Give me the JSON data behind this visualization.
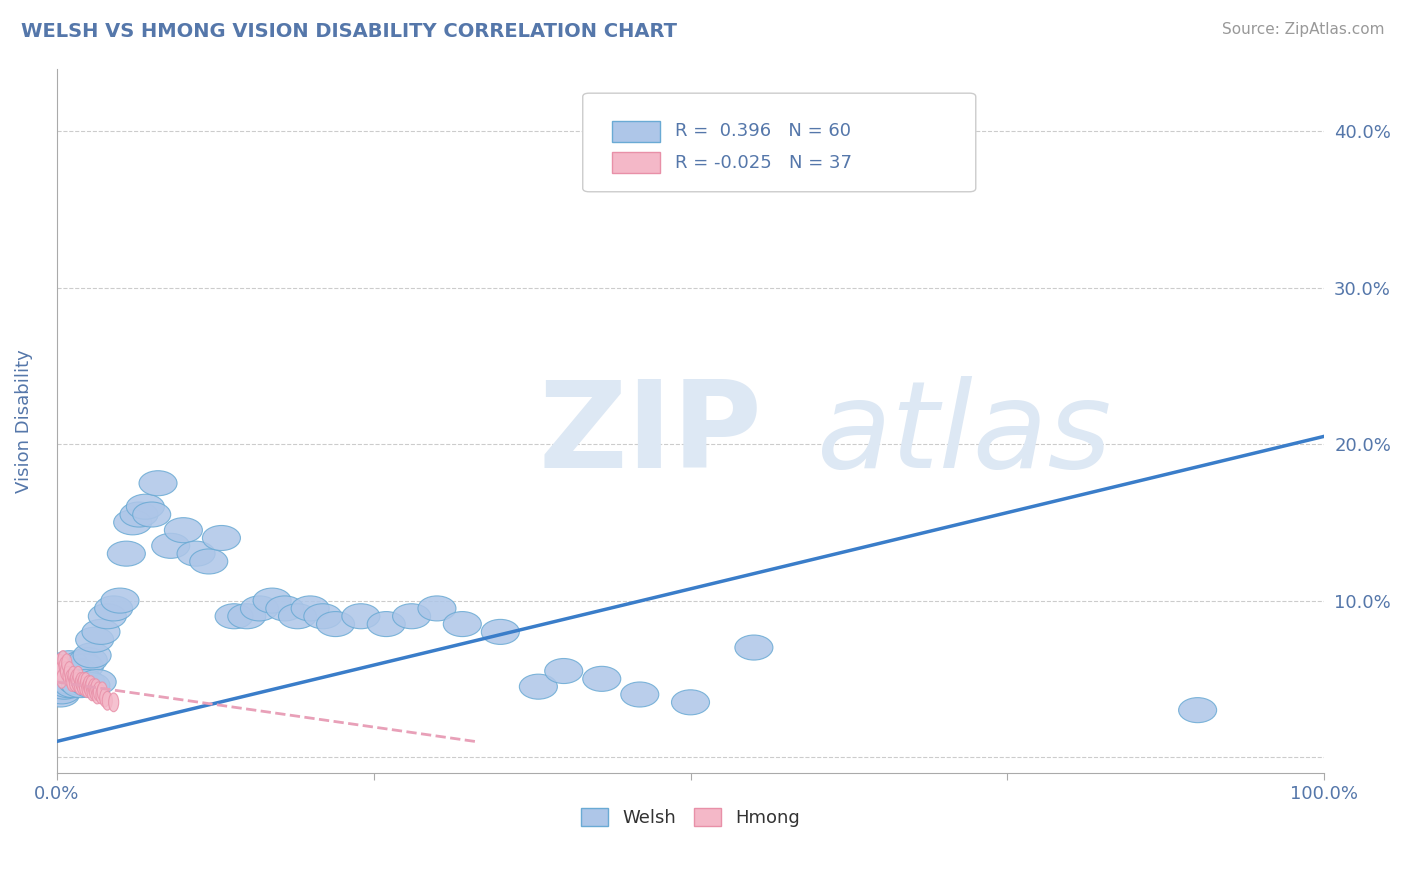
{
  "title": "WELSH VS HMONG VISION DISABILITY CORRELATION CHART",
  "source": "Source: ZipAtlas.com",
  "ylabel": "Vision Disability",
  "xlim": [
    0,
    1.0
  ],
  "ylim": [
    -0.01,
    0.44
  ],
  "welsh_R": 0.396,
  "welsh_N": 60,
  "hmong_R": -0.025,
  "hmong_N": 37,
  "welsh_color": "#aec6e8",
  "welsh_edge_color": "#6aaad4",
  "hmong_color": "#f4b8c8",
  "hmong_edge_color": "#e890a8",
  "welsh_line_color": "#3a7dc9",
  "hmong_line_color": "#e8a0b8",
  "welsh_line_x": [
    0.0,
    1.0
  ],
  "welsh_line_y": [
    0.01,
    0.205
  ],
  "hmong_line_x": [
    0.0,
    0.33
  ],
  "hmong_line_y": [
    0.048,
    0.01
  ],
  "background_color": "#ffffff",
  "grid_color": "#cccccc",
  "title_color": "#5577aa",
  "axis_label_color": "#5577aa",
  "tick_color": "#5577aa",
  "watermark_zip": "ZIP",
  "watermark_atlas": "atlas",
  "watermark_color": "#dde8f4",
  "welsh_scatter_x": [
    0.005,
    0.008,
    0.01,
    0.012,
    0.015,
    0.018,
    0.02,
    0.022,
    0.025,
    0.028,
    0.03,
    0.035,
    0.04,
    0.045,
    0.05,
    0.055,
    0.06,
    0.065,
    0.07,
    0.075,
    0.08,
    0.09,
    0.1,
    0.11,
    0.12,
    0.13,
    0.14,
    0.15,
    0.16,
    0.17,
    0.18,
    0.19,
    0.2,
    0.21,
    0.22,
    0.24,
    0.26,
    0.28,
    0.3,
    0.32,
    0.35,
    0.38,
    0.4,
    0.43,
    0.46,
    0.5,
    0.003,
    0.004,
    0.006,
    0.007,
    0.009,
    0.011,
    0.013,
    0.016,
    0.019,
    0.023,
    0.027,
    0.032,
    0.9,
    0.55
  ],
  "welsh_scatter_y": [
    0.05,
    0.045,
    0.06,
    0.055,
    0.055,
    0.055,
    0.06,
    0.058,
    0.062,
    0.065,
    0.075,
    0.08,
    0.09,
    0.095,
    0.1,
    0.13,
    0.15,
    0.155,
    0.16,
    0.155,
    0.175,
    0.135,
    0.145,
    0.13,
    0.125,
    0.14,
    0.09,
    0.09,
    0.095,
    0.1,
    0.095,
    0.09,
    0.095,
    0.09,
    0.085,
    0.09,
    0.085,
    0.09,
    0.095,
    0.085,
    0.08,
    0.045,
    0.055,
    0.05,
    0.04,
    0.035,
    0.04,
    0.042,
    0.045,
    0.048,
    0.046,
    0.048,
    0.046,
    0.048,
    0.046,
    0.048,
    0.046,
    0.048,
    0.03,
    0.07
  ],
  "hmong_scatter_x": [
    0.002,
    0.003,
    0.004,
    0.005,
    0.006,
    0.007,
    0.008,
    0.009,
    0.01,
    0.011,
    0.012,
    0.013,
    0.014,
    0.015,
    0.016,
    0.017,
    0.018,
    0.019,
    0.02,
    0.021,
    0.022,
    0.023,
    0.024,
    0.025,
    0.026,
    0.027,
    0.028,
    0.029,
    0.03,
    0.031,
    0.032,
    0.033,
    0.035,
    0.036,
    0.038,
    0.04,
    0.045
  ],
  "hmong_scatter_y": [
    0.06,
    0.055,
    0.05,
    0.062,
    0.058,
    0.055,
    0.06,
    0.052,
    0.055,
    0.05,
    0.048,
    0.052,
    0.048,
    0.05,
    0.048,
    0.052,
    0.046,
    0.048,
    0.046,
    0.048,
    0.045,
    0.048,
    0.044,
    0.046,
    0.044,
    0.046,
    0.042,
    0.044,
    0.042,
    0.044,
    0.04,
    0.042,
    0.04,
    0.042,
    0.038,
    0.036,
    0.035
  ]
}
